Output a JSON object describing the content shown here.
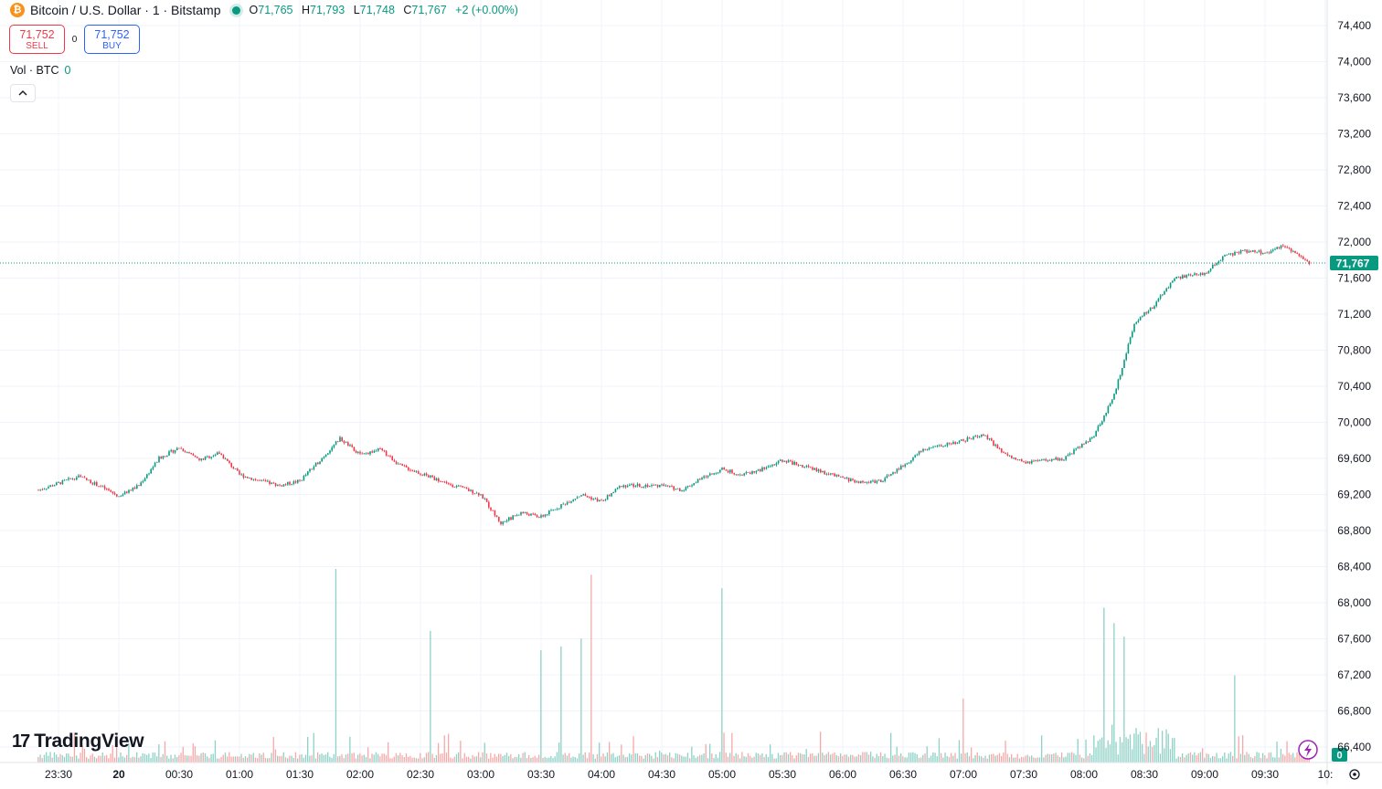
{
  "header": {
    "symbol": "Bitcoin / U.S. Dollar · 1 · Bitstamp",
    "icon": "bitcoin-icon",
    "ohlc": {
      "o_label": "O",
      "o": "71,765",
      "h_label": "H",
      "h": "71,793",
      "l_label": "L",
      "l": "71,748",
      "c_label": "C",
      "c": "71,767",
      "change": "+2 (+0.00%)"
    }
  },
  "trade": {
    "sell_price": "71,752",
    "sell_label": "SELL",
    "spread": "0",
    "buy_price": "71,752",
    "buy_label": "BUY"
  },
  "volume_legend": {
    "label": "Vol · BTC",
    "value": "0"
  },
  "branding": {
    "name": "TradingView"
  },
  "colors": {
    "up": "#089981",
    "down": "#f23645",
    "up_volume": "#8ed1c6",
    "down_volume": "#f7a9a7",
    "grid": "#f0f3fa"
  },
  "chart_data": {
    "type": "candlestick",
    "interval": "1 minute",
    "price_axis": {
      "ticks": [
        74400,
        74000,
        73600,
        73200,
        72800,
        72400,
        72000,
        71600,
        71200,
        70800,
        70400,
        70000,
        69600,
        69200,
        68800,
        68400,
        68000,
        67600,
        67200,
        66800,
        66400
      ],
      "tick_labels": [
        "74,400",
        "74,000",
        "73,600",
        "73,200",
        "72,800",
        "72,400",
        "72,000",
        "71,600",
        "71,200",
        "70,800",
        "70,400",
        "70,000",
        "69,600",
        "69,200",
        "68,800",
        "68,400",
        "68,000",
        "67,600",
        "67,200",
        "66,800",
        "66,400"
      ],
      "last_price": 71767,
      "last_price_label": "71,767"
    },
    "time_axis": {
      "labels": [
        "23:30",
        "20",
        "00:30",
        "01:00",
        "01:30",
        "02:00",
        "02:30",
        "03:00",
        "03:30",
        "04:00",
        "04:30",
        "05:00",
        "05:30",
        "06:00",
        "06:30",
        "07:00",
        "07:30",
        "08:00",
        "08:30",
        "09:00",
        "09:30",
        "10:"
      ],
      "bold": [
        "20"
      ]
    },
    "price_path": [
      [
        "23:20",
        69250
      ],
      [
        "23:40",
        69400
      ],
      [
        "23:50",
        69300
      ],
      [
        "00:00",
        69180
      ],
      [
        "00:10",
        69300
      ],
      [
        "00:20",
        69600
      ],
      [
        "00:30",
        69720
      ],
      [
        "00:40",
        69580
      ],
      [
        "00:50",
        69660
      ],
      [
        "01:00",
        69420
      ],
      [
        "01:10",
        69350
      ],
      [
        "01:20",
        69300
      ],
      [
        "01:30",
        69350
      ],
      [
        "01:40",
        69580
      ],
      [
        "01:50",
        69820
      ],
      [
        "02:00",
        69640
      ],
      [
        "02:10",
        69700
      ],
      [
        "02:20",
        69520
      ],
      [
        "02:40",
        69350
      ],
      [
        "03:00",
        69200
      ],
      [
        "03:10",
        68880
      ],
      [
        "03:20",
        69000
      ],
      [
        "03:30",
        68950
      ],
      [
        "03:40",
        69080
      ],
      [
        "03:50",
        69200
      ],
      [
        "04:00",
        69120
      ],
      [
        "04:10",
        69300
      ],
      [
        "04:30",
        69300
      ],
      [
        "04:40",
        69250
      ],
      [
        "04:50",
        69380
      ],
      [
        "05:00",
        69480
      ],
      [
        "05:10",
        69420
      ],
      [
        "05:20",
        69480
      ],
      [
        "05:30",
        69580
      ],
      [
        "05:40",
        69520
      ],
      [
        "06:00",
        69380
      ],
      [
        "06:10",
        69330
      ],
      [
        "06:20",
        69360
      ],
      [
        "06:30",
        69520
      ],
      [
        "06:40",
        69700
      ],
      [
        "07:00",
        69800
      ],
      [
        "07:10",
        69870
      ],
      [
        "07:20",
        69650
      ],
      [
        "07:30",
        69550
      ],
      [
        "07:50",
        69600
      ],
      [
        "08:05",
        69850
      ],
      [
        "08:15",
        70300
      ],
      [
        "08:25",
        71100
      ],
      [
        "08:35",
        71300
      ],
      [
        "08:45",
        71600
      ],
      [
        "09:00",
        71650
      ],
      [
        "09:10",
        71850
      ],
      [
        "09:20",
        71900
      ],
      [
        "09:30",
        71880
      ],
      [
        "09:40",
        71960
      ],
      [
        "09:52",
        71767
      ]
    ],
    "volume_axis": {
      "ticks": [
        0
      ],
      "tick_labels": [
        "0"
      ]
    },
    "volume_spikes": [
      [
        "01:48",
        1.0
      ],
      [
        "02:35",
        0.68
      ],
      [
        "03:30",
        0.58
      ],
      [
        "03:40",
        0.6
      ],
      [
        "03:50",
        0.64
      ],
      [
        "03:55",
        0.97
      ],
      [
        "05:00",
        0.9
      ],
      [
        "08:10",
        0.8
      ],
      [
        "08:15",
        0.72
      ],
      [
        "08:20",
        0.65
      ],
      [
        "09:15",
        0.45
      ],
      [
        "07:00",
        0.33
      ]
    ],
    "legend": "top-left",
    "grid": true
  }
}
